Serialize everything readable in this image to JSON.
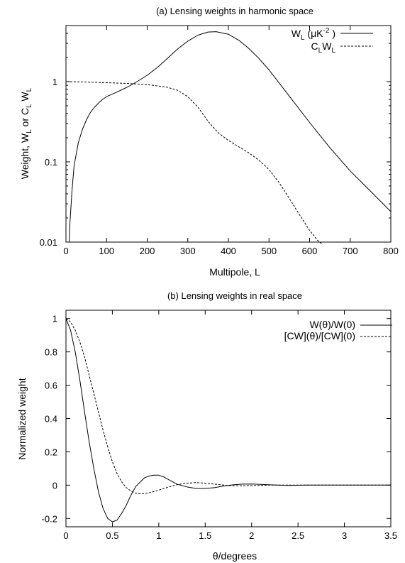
{
  "chart_data": [
    {
      "type": "line",
      "title": "(a) Lensing weights in harmonic space",
      "xlabel": "Multipole, L",
      "ylabel": {
        "base": "Weight, W",
        "sub1": "L",
        "mid": " or C",
        "sub2": "L",
        "mid2": " W",
        "sub3": "L"
      },
      "xscale": "linear",
      "yscale": "log",
      "xlim": [
        0,
        800
      ],
      "ylim": [
        0.01,
        5
      ],
      "xticks": [
        0,
        100,
        200,
        300,
        400,
        500,
        600,
        700,
        800
      ],
      "xtick_labels": [
        "0",
        "100",
        "200",
        "300",
        "400",
        "500",
        "600",
        "700",
        "800"
      ],
      "yticks": [
        0.01,
        0.1,
        1
      ],
      "ytick_labels": [
        "0.01",
        "0.1",
        "1"
      ],
      "grid": false,
      "legend_position": "top-right",
      "series": [
        {
          "name": "W_L (μK^-2 )",
          "legend": {
            "base": "W",
            "sub": "L",
            "rest": " (μK",
            "sup": "-2",
            "end": " )"
          },
          "style": "solid",
          "x": [
            8,
            10,
            15,
            20,
            30,
            40,
            50,
            60,
            70,
            80,
            90,
            100,
            125,
            150,
            175,
            200,
            225,
            250,
            275,
            300,
            325,
            350,
            370,
            400,
            425,
            450,
            475,
            500,
            550,
            600,
            650,
            700,
            750,
            800
          ],
          "y": [
            0.01,
            0.018,
            0.045,
            0.09,
            0.17,
            0.25,
            0.33,
            0.41,
            0.48,
            0.54,
            0.6,
            0.65,
            0.74,
            0.85,
            1.0,
            1.2,
            1.5,
            1.95,
            2.55,
            3.2,
            3.8,
            4.15,
            4.2,
            3.9,
            3.3,
            2.6,
            1.95,
            1.4,
            0.66,
            0.31,
            0.15,
            0.077,
            0.043,
            0.024
          ]
        },
        {
          "name": "C_L W_L",
          "legend": {
            "base": "C",
            "sub": "L",
            "rest": "W",
            "sub2": "L"
          },
          "style": "dashed",
          "x": [
            2,
            50,
            100,
            150,
            200,
            250,
            275,
            300,
            325,
            350,
            375,
            400,
            425,
            450,
            475,
            500,
            525,
            550,
            575,
            600,
            620,
            630
          ],
          "y": [
            1.0,
            0.99,
            0.97,
            0.95,
            0.92,
            0.85,
            0.78,
            0.65,
            0.48,
            0.32,
            0.23,
            0.185,
            0.155,
            0.13,
            0.105,
            0.08,
            0.055,
            0.035,
            0.022,
            0.014,
            0.0105,
            0.0095
          ]
        }
      ]
    },
    {
      "type": "line",
      "title": "(b) Lensing weights in real space",
      "xlabel": "θ/degrees",
      "ylabel": "Normalized weight",
      "xscale": "linear",
      "yscale": "linear",
      "xlim": [
        0,
        3.5
      ],
      "ylim": [
        -0.25,
        1.05
      ],
      "xticks": [
        0,
        0.5,
        1,
        1.5,
        2,
        2.5,
        3,
        3.5
      ],
      "xtick_labels": [
        "0",
        "0.5",
        "1",
        "1.5",
        "2",
        "2.5",
        "3",
        "3.5"
      ],
      "yticks": [
        -0.2,
        0,
        0.2,
        0.4,
        0.6,
        0.8,
        1
      ],
      "ytick_labels": [
        "-0.2",
        "0",
        "0.2",
        "0.4",
        "0.6",
        "0.8",
        "1"
      ],
      "grid": false,
      "legend_position": "top-right",
      "series": [
        {
          "name": "W(θ)/W(0)",
          "style": "solid",
          "x": [
            0,
            0.05,
            0.1,
            0.15,
            0.2,
            0.25,
            0.3,
            0.35,
            0.4,
            0.45,
            0.5,
            0.55,
            0.6,
            0.65,
            0.7,
            0.75,
            0.8,
            0.85,
            0.9,
            0.95,
            1.0,
            1.05,
            1.1,
            1.15,
            1.2,
            1.3,
            1.4,
            1.5,
            1.6,
            1.7,
            1.8,
            1.9,
            2.0,
            2.1,
            2.2,
            2.4,
            2.6,
            3.0,
            3.5
          ],
          "y": [
            1.0,
            0.93,
            0.8,
            0.63,
            0.44,
            0.26,
            0.1,
            -0.04,
            -0.14,
            -0.2,
            -0.22,
            -0.21,
            -0.17,
            -0.12,
            -0.06,
            -0.01,
            0.02,
            0.045,
            0.055,
            0.06,
            0.06,
            0.05,
            0.035,
            0.02,
            0.005,
            -0.01,
            -0.02,
            -0.02,
            -0.015,
            -0.005,
            0.002,
            0.006,
            0.007,
            0.005,
            0.002,
            -0.002,
            0.0,
            0.0,
            0.0
          ]
        },
        {
          "name": "[CW](θ)/[CW](0)",
          "style": "dashed",
          "x": [
            0,
            0.05,
            0.1,
            0.15,
            0.2,
            0.25,
            0.3,
            0.35,
            0.4,
            0.45,
            0.5,
            0.55,
            0.6,
            0.65,
            0.7,
            0.75,
            0.8,
            0.85,
            0.9,
            1.0,
            1.1,
            1.2,
            1.3,
            1.4,
            1.5,
            1.6,
            1.7,
            1.8,
            2.0,
            2.2,
            2.5,
            3.0,
            3.5
          ],
          "y": [
            1.0,
            0.98,
            0.93,
            0.86,
            0.77,
            0.66,
            0.55,
            0.44,
            0.33,
            0.23,
            0.14,
            0.07,
            0.02,
            -0.015,
            -0.035,
            -0.048,
            -0.052,
            -0.05,
            -0.045,
            -0.03,
            -0.012,
            0.003,
            0.012,
            0.015,
            0.012,
            0.006,
            0.0,
            -0.004,
            -0.003,
            0.0,
            0.0,
            0.0,
            0.0
          ]
        }
      ]
    }
  ]
}
